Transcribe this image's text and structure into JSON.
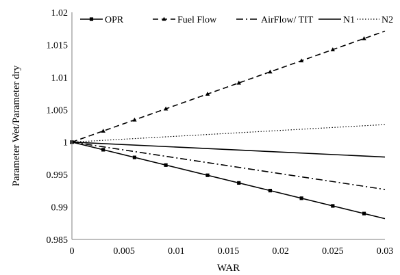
{
  "chart_data": {
    "type": "line",
    "title": "",
    "xlabel": "WAR",
    "ylabel": "Parameter Wet/Parameter dry",
    "xlim": [
      0,
      0.03
    ],
    "ylim": [
      0.985,
      1.02
    ],
    "x_ticks": [
      0,
      0.005,
      0.01,
      0.015,
      0.02,
      0.025,
      0.03
    ],
    "x_tick_labels": [
      "0",
      "0.005",
      "0.01",
      "0.015",
      "0.02",
      "0.025",
      "0.03"
    ],
    "y_ticks": [
      0.985,
      0.99,
      0.995,
      1,
      1.005,
      1.01,
      1.015,
      1.02
    ],
    "y_tick_labels": [
      "0.985",
      "0.99",
      "0.995",
      "1",
      "1.005",
      "1.01",
      "1.015",
      "1.02"
    ],
    "grid": false,
    "legend_position": "top",
    "x": [
      0,
      0.03
    ],
    "series": [
      {
        "name": "OPR",
        "style": "solid",
        "marker": "square",
        "color": "#000000",
        "values": [
          1.0,
          0.9882
        ],
        "marker_x": [
          0,
          0.003,
          0.006,
          0.009,
          0.013,
          0.016,
          0.019,
          0.022,
          0.025,
          0.028
        ]
      },
      {
        "name": "Fuel Flow",
        "style": "dashed",
        "marker": "triangle",
        "color": "#000000",
        "values": [
          1.0,
          1.0171
        ],
        "marker_x": [
          0,
          0.003,
          0.006,
          0.009,
          0.013,
          0.016,
          0.019,
          0.022,
          0.025,
          0.028
        ]
      },
      {
        "name": "AirFlow/ TIT",
        "style": "dashdot",
        "marker": "none",
        "color": "#000000",
        "values": [
          1.0,
          0.9927
        ]
      },
      {
        "name": "N1",
        "style": "solid",
        "marker": "none",
        "color": "#000000",
        "values": [
          1.0,
          0.9977
        ]
      },
      {
        "name": "N2",
        "style": "dotted",
        "marker": "none",
        "color": "#000000",
        "values": [
          1.0,
          1.0027
        ]
      }
    ]
  }
}
